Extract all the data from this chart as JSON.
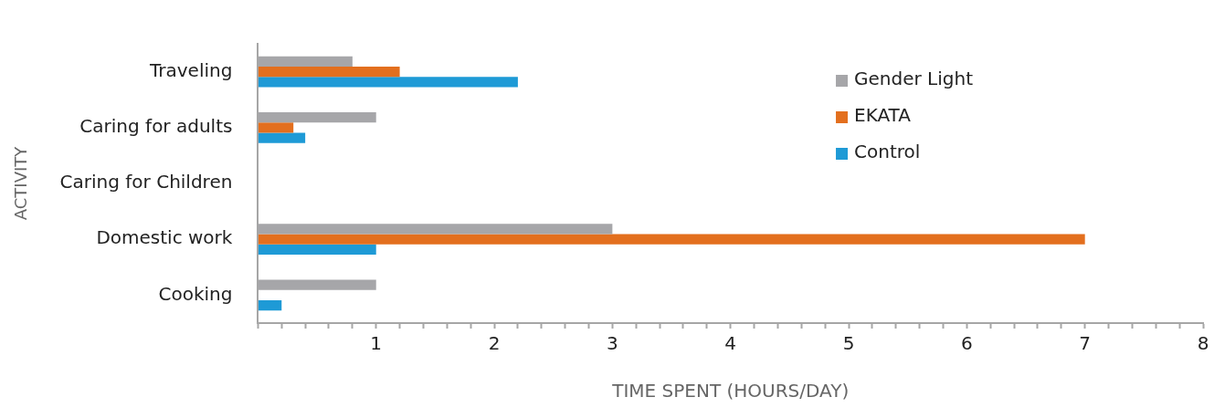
{
  "chart_data": {
    "type": "bar",
    "orientation": "horizontal",
    "xlabel": "TIME SPENT (HOURS/DAY)",
    "ylabel": "ACTIVITY",
    "categories": [
      "Traveling",
      "Caring for adults",
      "Caring for Children",
      "Domestic work",
      "Cooking"
    ],
    "series": [
      {
        "name": "Gender Light",
        "color": "#a6a6a9",
        "values": [
          0.8,
          1.0,
          null,
          3.0,
          1.0
        ]
      },
      {
        "name": "EKATA",
        "color": "#e36f1e",
        "values": [
          1.2,
          0.3,
          null,
          7.0,
          null
        ]
      },
      {
        "name": "Control",
        "color": "#1e9ad6",
        "values": [
          2.2,
          0.4,
          null,
          1.0,
          0.2
        ]
      }
    ],
    "xlim": [
      0,
      8
    ],
    "xticks": [
      {
        "value": 0,
        "label": null
      },
      {
        "value": 0.2,
        "label": null
      },
      {
        "value": 0.4,
        "label": null
      },
      {
        "value": 0.6,
        "label": null
      },
      {
        "value": 0.8,
        "label": null
      },
      1,
      {
        "value": 1.2,
        "label": null
      },
      {
        "value": 1.4,
        "label": null
      },
      {
        "value": 1.6,
        "label": null
      },
      {
        "value": 1.8,
        "label": null
      },
      2,
      {
        "value": 2.2,
        "label": null
      },
      {
        "value": 2.4,
        "label": null
      },
      {
        "value": 2.6,
        "label": null
      },
      {
        "value": 2.8,
        "label": null
      },
      3,
      {
        "value": 3.2,
        "label": null
      },
      {
        "value": 3.4,
        "label": null
      },
      {
        "value": 3.6,
        "label": null
      },
      {
        "value": 3.8,
        "label": null
      },
      4,
      {
        "value": 4.2,
        "label": null
      },
      {
        "value": 4.4,
        "label": null
      },
      {
        "value": 4.6,
        "label": null
      },
      {
        "value": 4.8,
        "label": null
      },
      5,
      {
        "value": 5.2,
        "label": null
      },
      {
        "value": 5.4,
        "label": null
      },
      {
        "value": 5.6,
        "label": null
      },
      {
        "value": 5.8,
        "label": null
      },
      6,
      {
        "value": 6.2,
        "label": null
      },
      {
        "value": 6.4,
        "label": null
      },
      {
        "value": 6.6,
        "label": null
      },
      {
        "value": 6.8,
        "label": null
      },
      7,
      {
        "value": 7.2,
        "label": null
      },
      {
        "value": 7.4,
        "label": null
      },
      {
        "value": 7.6,
        "label": null
      },
      {
        "value": 7.8,
        "label": null
      },
      8
    ],
    "grid": false,
    "legend": "top right"
  }
}
